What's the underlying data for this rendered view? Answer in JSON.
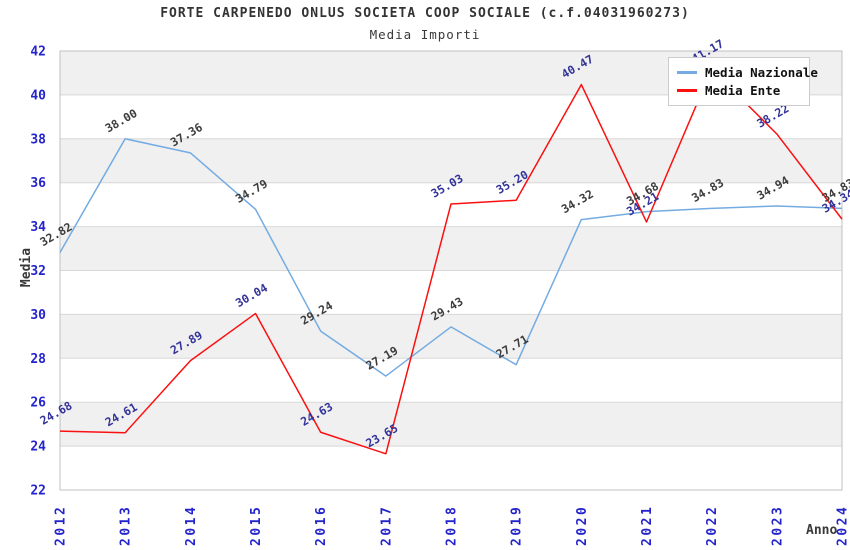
{
  "header": {
    "title": "FORTE CARPENEDO ONLUS SOCIETA COOP SOCIALE (c.f.04031960273)",
    "subtitle": "Media Importi"
  },
  "legend": {
    "items": [
      {
        "label": "Media Nazionale",
        "color": "#74abe2"
      },
      {
        "label": "Media Ente",
        "color": "#fb1010"
      }
    ]
  },
  "chart_data": {
    "type": "line",
    "x": [
      "2012",
      "2013",
      "2014",
      "2015",
      "2016",
      "2017",
      "2018",
      "2019",
      "2020",
      "2021",
      "2022",
      "2023",
      "2024"
    ],
    "series": [
      {
        "name": "Media Nazionale",
        "color": "#74abe2",
        "label_color": "#3c3c3c",
        "values": [
          32.82,
          38.0,
          37.36,
          34.79,
          29.24,
          27.19,
          29.43,
          27.71,
          34.32,
          34.68,
          34.83,
          34.94,
          34.83
        ]
      },
      {
        "name": "Media Ente",
        "color": "#fb1010",
        "label_color": "#333399",
        "values": [
          24.68,
          24.61,
          27.89,
          30.04,
          24.63,
          23.65,
          35.03,
          35.2,
          40.47,
          34.21,
          41.17,
          38.22,
          34.34
        ]
      }
    ],
    "title": "Media Importi",
    "xlabel": "Anno",
    "ylabel": "Media",
    "ylim": [
      22,
      42
    ],
    "ytick_step": 2,
    "grid": true,
    "band_color": "#f0f0f0",
    "gridline_color": "#d8d8d8",
    "border_color": "#c0c0c0",
    "tick_label_color": "#2424cc",
    "legend_position": "top-right"
  }
}
